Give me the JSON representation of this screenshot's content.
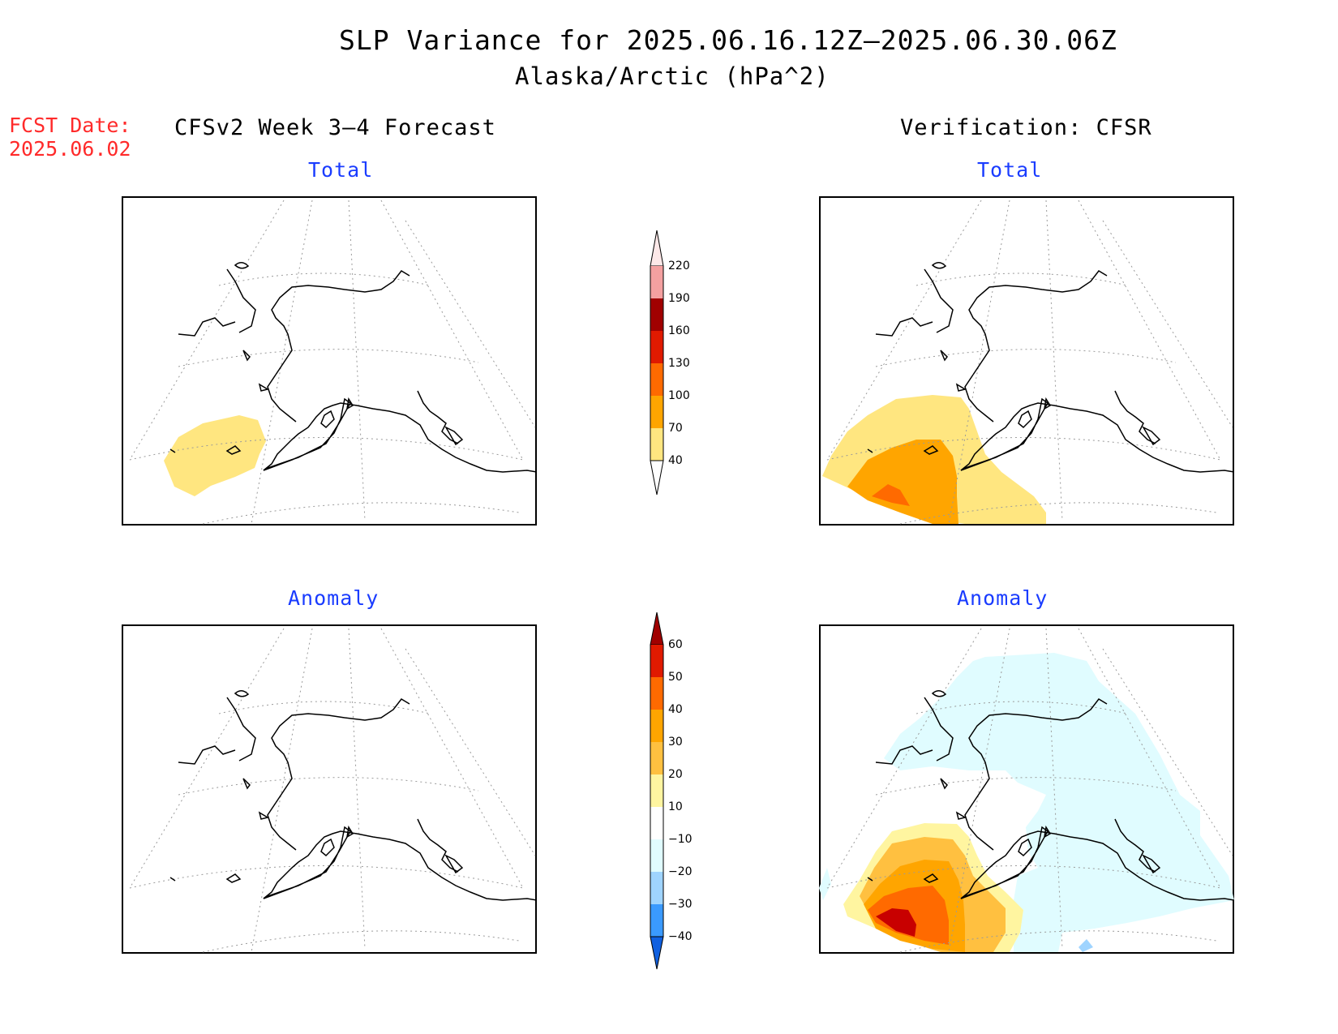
{
  "header": {
    "title": "SLP Variance for 2025.06.16.12Z–2025.06.30.06Z",
    "subtitle": "Alaska/Arctic (hPa^2)"
  },
  "fcst": {
    "label": "FCST Date:",
    "date": "2025.06.02"
  },
  "columns": {
    "left": "CFSv2 Week 3–4 Forecast",
    "right": "Verification: CFSR"
  },
  "panels": {
    "top_left": "Total",
    "top_right": "Total",
    "bottom_left": "Anomaly",
    "bottom_right": "Anomaly"
  },
  "colorbars": {
    "total": {
      "labels": [
        "220",
        "190",
        "160",
        "130",
        "100",
        "70",
        "40"
      ],
      "colors": [
        "#fde8e8",
        "#f4a0a0",
        "#a00000",
        "#e01a00",
        "#ff6a00",
        "#ffa500",
        "#ffe680"
      ]
    },
    "anomaly": {
      "labels": [
        "60",
        "50",
        "40",
        "30",
        "20",
        "10",
        "−10",
        "−20",
        "−30",
        "−40"
      ],
      "colors": [
        "#a00000",
        "#e01a00",
        "#ff6a00",
        "#ffa500",
        "#ffc040",
        "#fff5a0",
        "#ffffff",
        "#e0fcff",
        "#9fd4ff",
        "#3a9aff",
        "#1060e0"
      ]
    }
  },
  "legend_colors": {
    "yellow": "#ffe680",
    "orange": "#ffa500",
    "dark_orange": "#ff6a00",
    "light_cyan": "#e0fcff"
  }
}
